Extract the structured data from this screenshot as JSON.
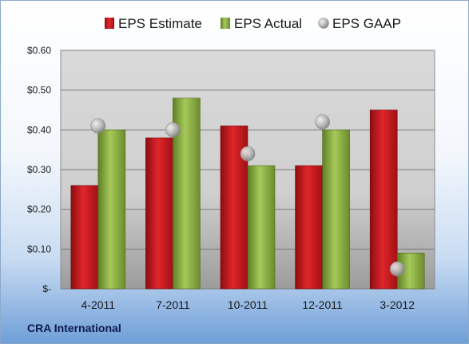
{
  "company": "CRA International",
  "colors": {
    "estimate": "#c8171c",
    "actual": "#8fb446",
    "gaap": "#a9a9a9"
  },
  "chart_data": {
    "type": "bar",
    "categories": [
      "4-2011",
      "7-2011",
      "10-2011",
      "12-2011",
      "3-2012"
    ],
    "series": [
      {
        "name": "EPS Estimate",
        "values": [
          0.26,
          0.38,
          0.41,
          0.31,
          0.45
        ]
      },
      {
        "name": "EPS Actual",
        "values": [
          0.4,
          0.48,
          0.31,
          0.4,
          0.09
        ]
      },
      {
        "name": "EPS GAAP",
        "values": [
          0.41,
          0.4,
          0.34,
          0.42,
          0.05
        ],
        "marker": "circle"
      }
    ],
    "ylim": [
      0,
      0.6
    ],
    "yticks": [
      0,
      0.1,
      0.2,
      0.3,
      0.4,
      0.5,
      0.6
    ],
    "ytick_labels": [
      "$-",
      "$0.10",
      "$0.20",
      "$0.30",
      "$0.40",
      "$0.50",
      "$0.60"
    ],
    "grid": true,
    "legend_position": "top"
  }
}
